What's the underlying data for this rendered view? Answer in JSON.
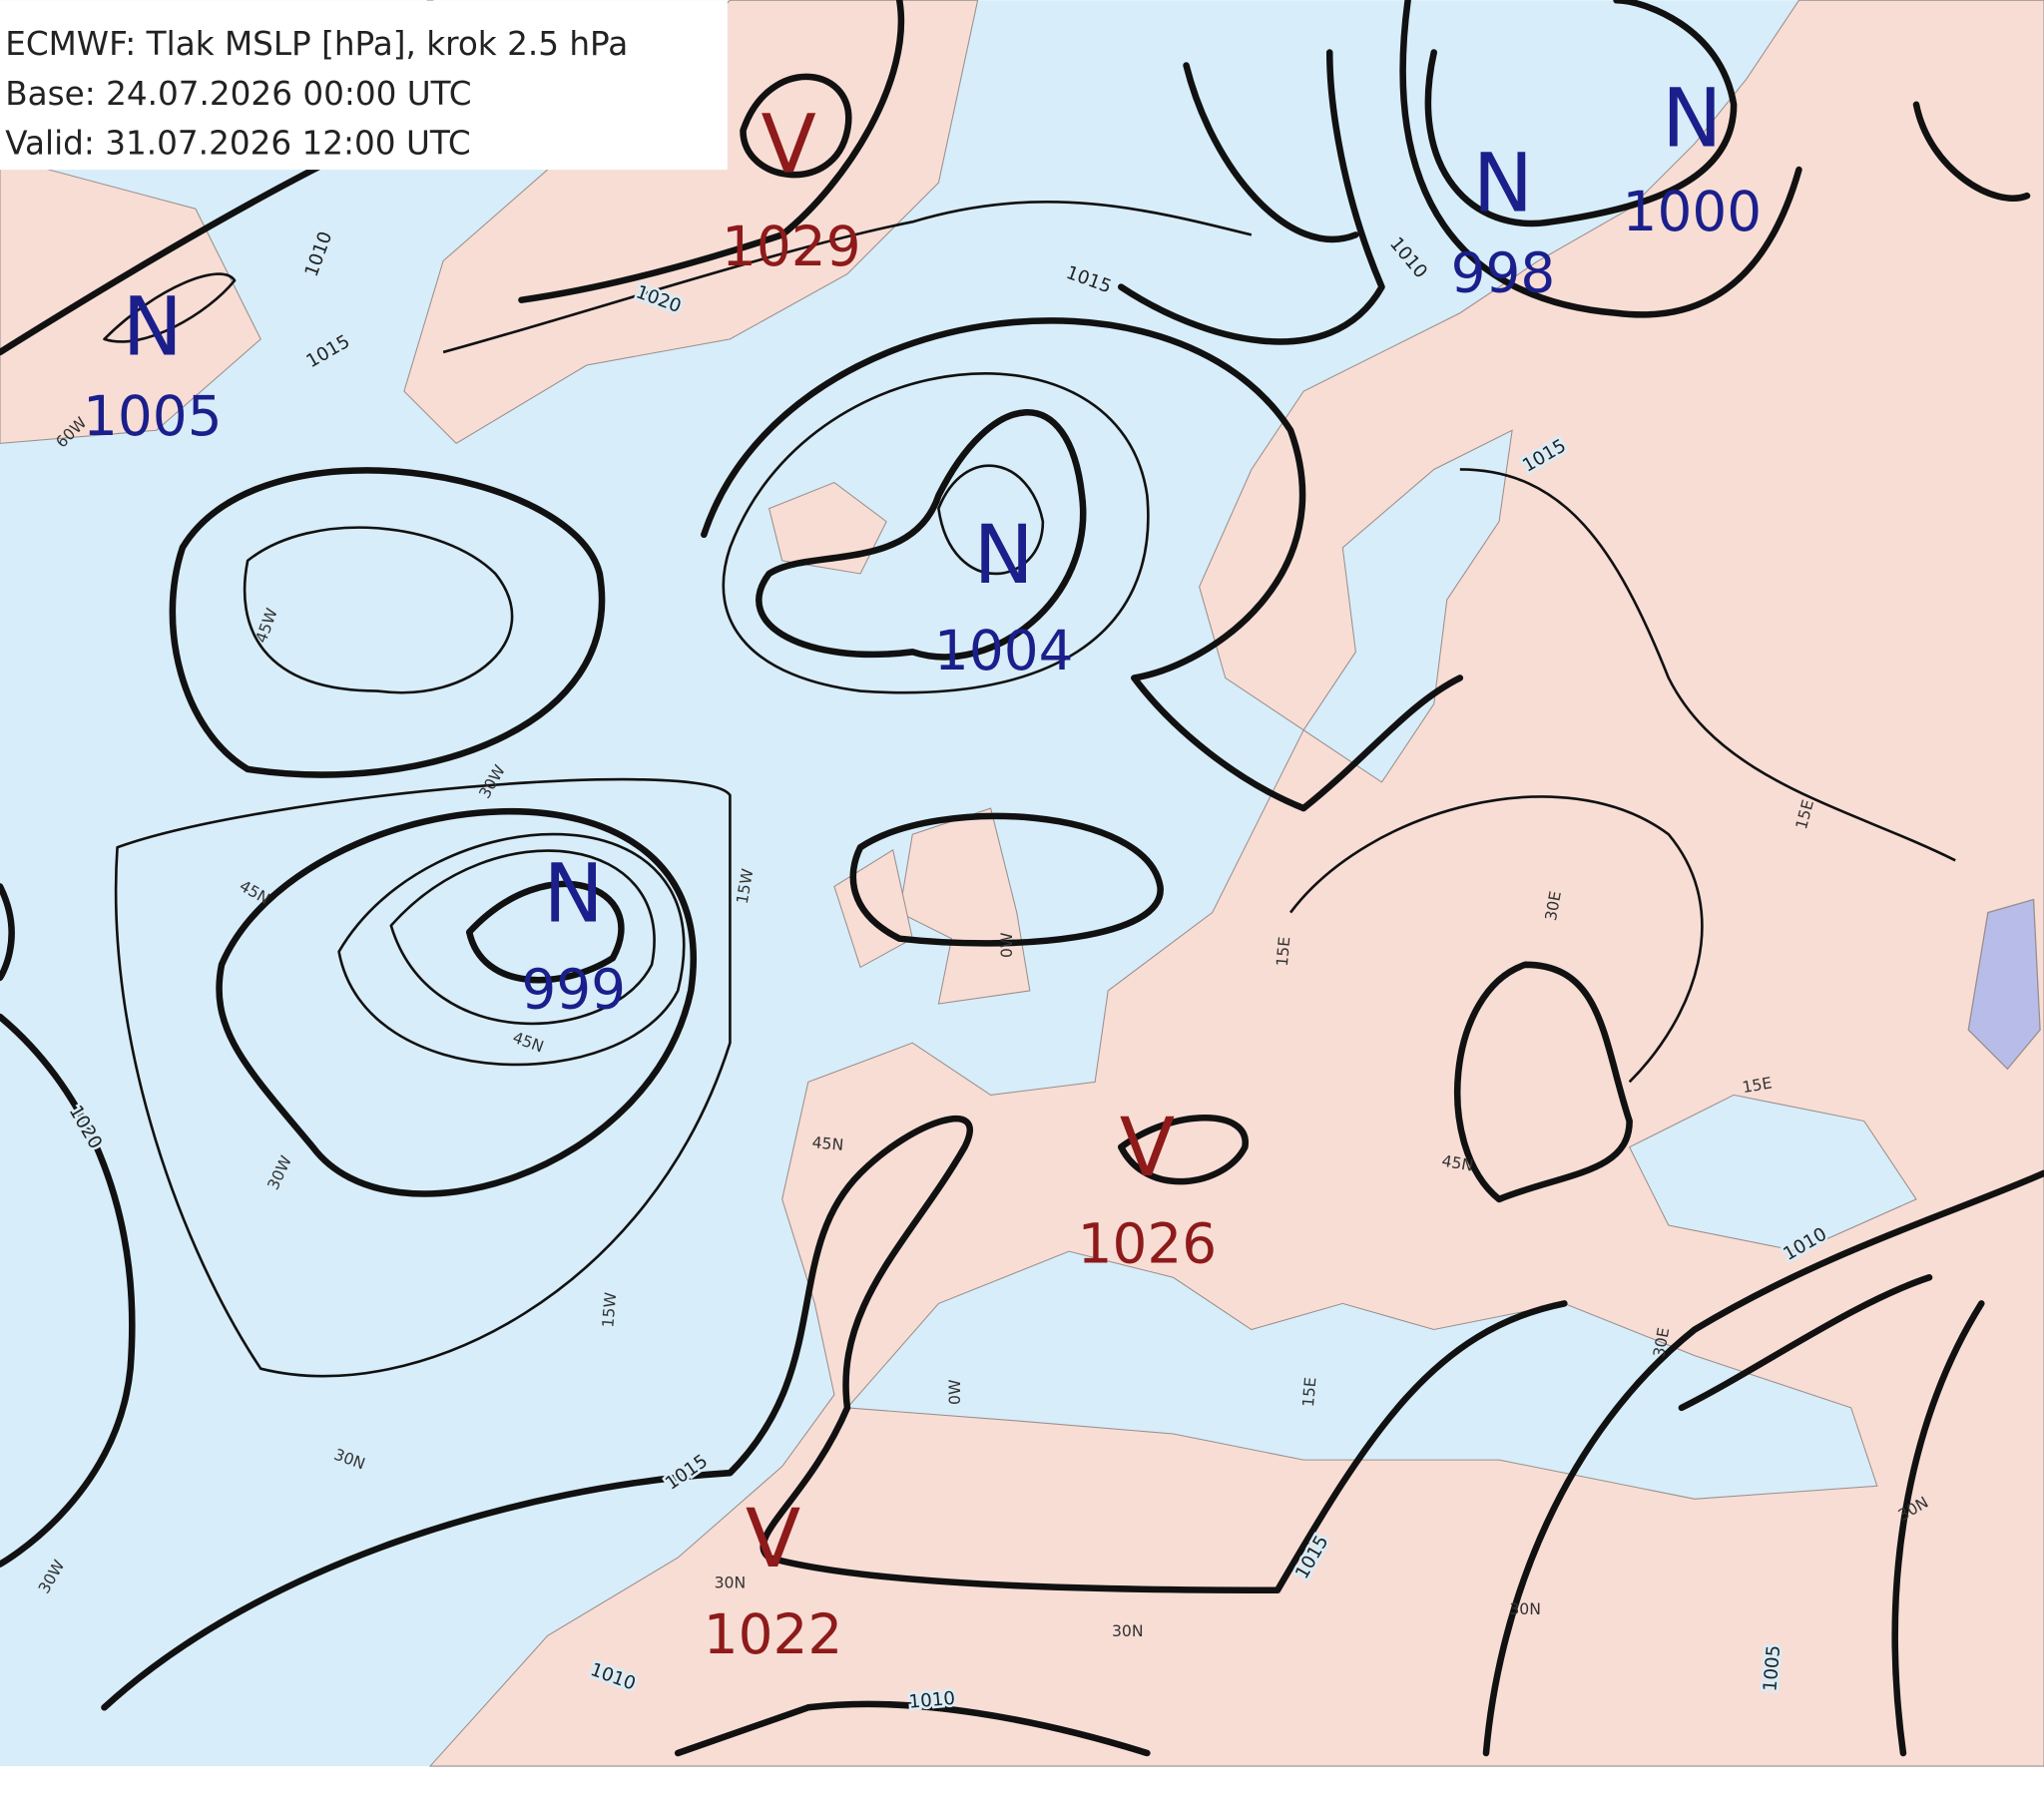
{
  "header": {
    "lines": [
      "ECMWF: Tlak MSLP [hPa], krok 2.5 hPa",
      "Base: 24.07.2026 00:00 UTC",
      "Valid: 31.07.2026 12:00 UTC"
    ]
  },
  "pressure_centers": [
    {
      "symbol": "V",
      "value": 1029
    },
    {
      "symbol": "N",
      "value": 1005
    },
    {
      "symbol": "N",
      "value": 1004
    },
    {
      "symbol": "N",
      "value": 999
    },
    {
      "symbol": "N",
      "value": 998
    },
    {
      "symbol": "N",
      "value": 1000
    },
    {
      "symbol": "V",
      "value": 1026
    },
    {
      "symbol": "V",
      "value": 1022
    }
  ],
  "isobar_labels": [
    "1010",
    "1015",
    "1020",
    "1015",
    "1010",
    "1015",
    "1020",
    "1015",
    "1015",
    "1010",
    "1010",
    "1010",
    "1005"
  ],
  "grid_labels": [
    "60W",
    "45W",
    "30W",
    "45N",
    "15W",
    "45N",
    "0W",
    "15E",
    "30E",
    "15E",
    "45N",
    "45N",
    "30N",
    "30W",
    "30N",
    "30N",
    "30N",
    "0W",
    "15E",
    "30E",
    "30N",
    "15W",
    "30W",
    "15E"
  ]
}
